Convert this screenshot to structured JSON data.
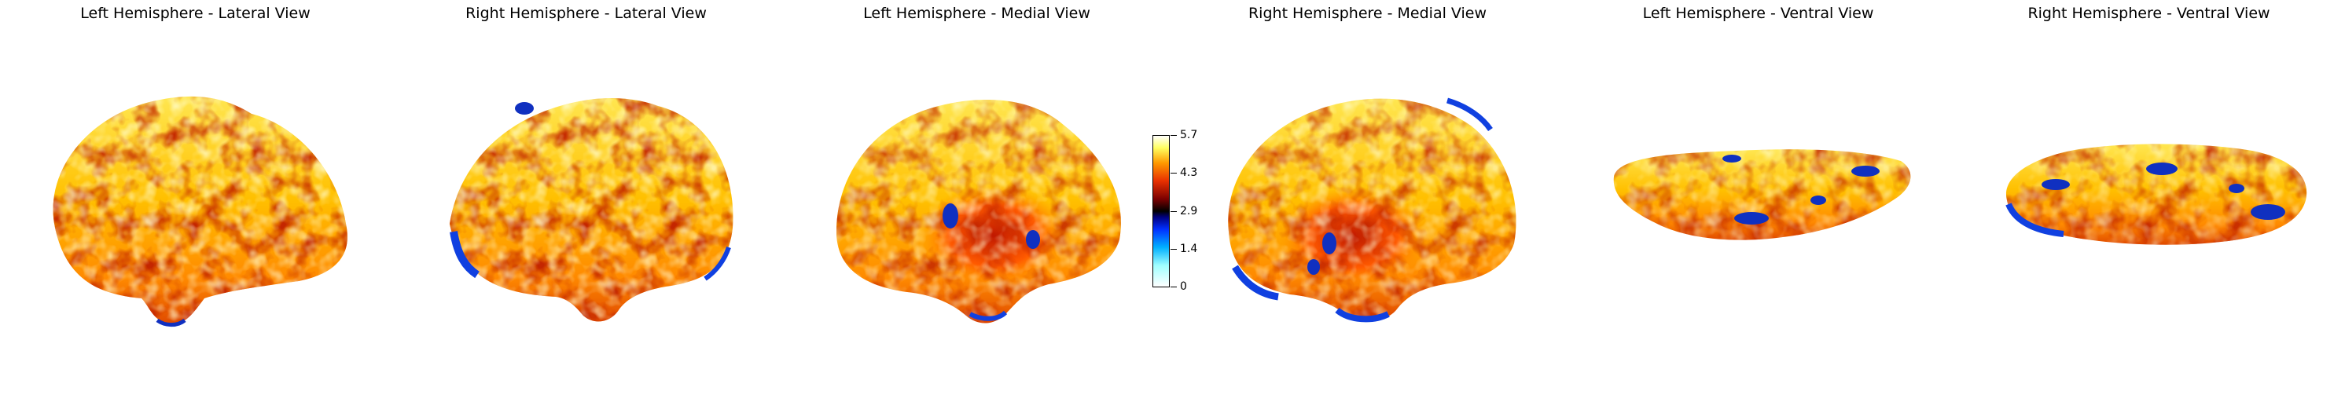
{
  "panels": [
    {
      "title": "Left Hemisphere - Lateral View"
    },
    {
      "title": "Right Hemisphere - Lateral View"
    },
    {
      "title": "Left Hemisphere - Medial View"
    },
    {
      "title": "Right Hemisphere - Medial View"
    },
    {
      "title": "Left Hemisphere - Ventral View"
    },
    {
      "title": "Right Hemisphere - Ventral View"
    }
  ],
  "colorbar": {
    "colormap": "cold_hot",
    "range": [
      0,
      5.7
    ],
    "ticks": [
      "0",
      "1.4",
      "2.9",
      "4.3",
      "5.7"
    ],
    "tick_values": [
      0,
      1.4,
      2.9,
      4.3,
      5.7
    ],
    "colors": [
      "#ffffff",
      "#00ffff",
      "#0044ff",
      "#000060",
      "#000000",
      "#7a0000",
      "#e83000",
      "#ff9a00",
      "#ffff60",
      "#ffffff"
    ]
  }
}
